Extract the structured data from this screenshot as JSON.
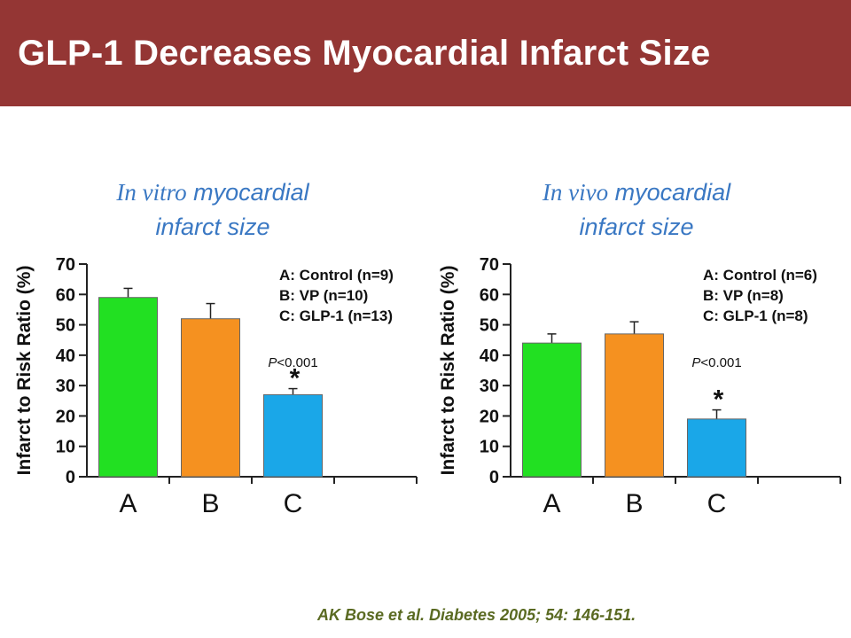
{
  "slide": {
    "title": "GLP-1 Decreases Myocardial Infarct Size",
    "citation": "AK Bose et al. Diabetes 2005; 54: 146-151."
  },
  "colors": {
    "header_bg": "#943634",
    "title_text": "#3a78c3",
    "bar_A": "#22e022",
    "bar_B": "#f59120",
    "bar_C": "#1aa7e8",
    "citation_text": "#5a6a22"
  },
  "chart_data": [
    {
      "type": "bar",
      "title_italic": "In vitro",
      "title_rest": " myocardial",
      "title_line2": "infarct size",
      "ylabel": "Infarct to Risk Ratio (%)",
      "xlabel": "",
      "ylim": [
        0,
        70
      ],
      "yticks": [
        "0",
        "10",
        "20",
        "30",
        "40",
        "50",
        "60",
        "70"
      ],
      "grid": false,
      "categories": [
        "A",
        "B",
        "C"
      ],
      "values": [
        59,
        52,
        27
      ],
      "error_upper": [
        3,
        5,
        2
      ],
      "legend": [
        "A: Control (n=9)",
        "B: VP (n=10)",
        "C: GLP-1 (n=13)"
      ],
      "legend_position": "top-right",
      "annotation_p": "P",
      "annotation_rest": "<0.001",
      "significance_marker": "*",
      "significant_category": "C"
    },
    {
      "type": "bar",
      "title_italic": "In vivo",
      "title_rest": " myocardial",
      "title_line2": "infarct size",
      "ylabel": "Infarct to Risk Ratio (%)",
      "xlabel": "",
      "ylim": [
        0,
        70
      ],
      "yticks": [
        "0",
        "10",
        "20",
        "30",
        "40",
        "50",
        "60",
        "70"
      ],
      "grid": false,
      "categories": [
        "A",
        "B",
        "C"
      ],
      "values": [
        44,
        47,
        19
      ],
      "error_upper": [
        3,
        4,
        3
      ],
      "legend": [
        "A: Control (n=6)",
        "B: VP (n=8)",
        "C: GLP-1 (n=8)"
      ],
      "legend_position": "top-right",
      "annotation_p": "P",
      "annotation_rest": "<0.001",
      "significance_marker": "*",
      "significant_category": "C"
    }
  ]
}
